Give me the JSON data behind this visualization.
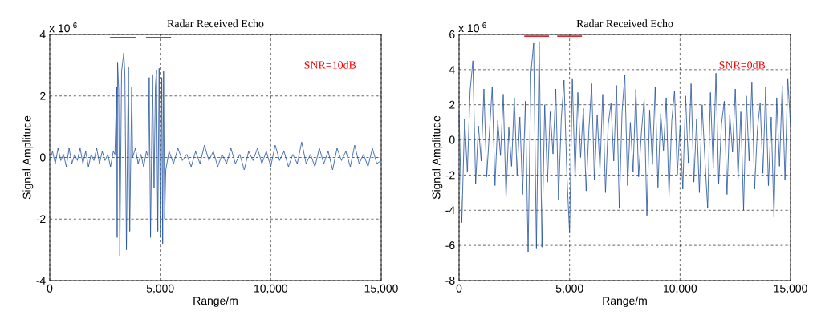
{
  "chart_data": [
    {
      "type": "line",
      "title": "Radar Received Echo",
      "xlabel": "Range/m",
      "ylabel": "Signal Amplitude",
      "xlim": [
        0,
        15000
      ],
      "ylim": [
        -4,
        4
      ],
      "xticks": [
        0,
        {
          "value": 5000,
          "label": "5,000"
        },
        {
          "value": 10000,
          "label": "10,000"
        },
        {
          "value": 15000,
          "label": "15,000"
        }
      ],
      "yticks": [
        -4,
        -2,
        0,
        2,
        4
      ],
      "grid": true,
      "annotations": [
        "x 10$^{-6}$",
        "SNR=10dB"
      ],
      "series": [
        {
          "color": "#2150a0",
          "x": [
            0,
            125,
            250,
            375,
            500,
            625,
            750,
            875,
            1000,
            1125,
            1250,
            1375,
            1500,
            1625,
            1750,
            1875,
            2000,
            2125,
            2250,
            2375,
            2500,
            2625,
            2750,
            2875,
            2950,
            3030,
            3050,
            3070,
            3120,
            3170,
            3250,
            3350,
            3400,
            3470,
            3520,
            3560,
            3620,
            3710,
            3750,
            3875,
            4000,
            4125,
            4250,
            4375,
            4460,
            4500,
            4560,
            4650,
            4720,
            4780,
            4830,
            4890,
            4950,
            5010,
            5070,
            5110,
            5150,
            5200,
            5250,
            5400,
            5600,
            5800,
            6000,
            6200,
            6400,
            6600,
            6800,
            7000,
            7200,
            7400,
            7600,
            7800,
            8000,
            8200,
            8400,
            8600,
            8800,
            9000,
            9200,
            9400,
            9600,
            9800,
            10000,
            10200,
            10400,
            10600,
            10800,
            11000,
            11200,
            11400,
            11600,
            11800,
            12000,
            12200,
            12400,
            12600,
            12800,
            13000,
            13200,
            13400,
            13600,
            13800,
            14000,
            14200,
            14400,
            14600,
            14800,
            15000
          ],
          "values": [
            -0.1,
            0.2,
            -0.2,
            0.3,
            -0.1,
            0.1,
            -0.3,
            0.3,
            -0.2,
            0.1,
            -0.1,
            0.3,
            -0.2,
            0.2,
            -0.3,
            0.1,
            -0.1,
            0.3,
            -0.2,
            0.2,
            -0.1,
            0.1,
            -0.3,
            0.2,
            0.1,
            2.3,
            -2.6,
            3.1,
            2.2,
            -3.2,
            2.8,
            3.4,
            2.7,
            -3.0,
            0.5,
            2.95,
            -2.4,
            2.3,
            0.0,
            0.3,
            -0.2,
            0.1,
            -0.3,
            0.2,
            0.0,
            2.6,
            -2.6,
            2.7,
            -1.0,
            2.3,
            2.85,
            -2.4,
            2.9,
            -2.6,
            2.6,
            -2.8,
            2.8,
            -2.0,
            -0.4,
            0.2,
            -0.2,
            0.3,
            -0.1,
            0.1,
            -0.3,
            0.2,
            -0.2,
            0.4,
            -0.1,
            0.2,
            -0.3,
            0.1,
            -0.2,
            0.3,
            -0.2,
            0.1,
            -0.4,
            0.2,
            -0.1,
            0.3,
            -0.2,
            0.2,
            -0.3,
            0.4,
            -0.1,
            0.2,
            -0.3,
            0.1,
            -0.2,
            0.5,
            -0.2,
            0.1,
            -0.3,
            0.3,
            -0.2,
            0.2,
            -0.4,
            0.3,
            -0.1,
            0.2,
            -0.3,
            0.4,
            -0.2,
            0.1,
            -0.3,
            0.3,
            -0.2,
            -0.1
          ]
        },
        {
          "color": "#e8232a",
          "x": [
            2730,
            3890,
            4100,
            4360,
            5490
          ],
          "values": [
            3.9,
            3.9,
            null,
            3.9,
            3.9
          ]
        }
      ]
    },
    {
      "type": "line",
      "title": "Radar Received Echo",
      "xlabel": "Range/m",
      "ylabel": "Signal Amplitude",
      "xlim": [
        0,
        15000
      ],
      "ylim": [
        -8,
        6
      ],
      "xticks": [
        0,
        {
          "value": 5000,
          "label": "5,000"
        },
        {
          "value": 10000,
          "label": "10,000"
        },
        {
          "value": 15000,
          "label": "15,000"
        }
      ],
      "yticks": [
        -8,
        -6,
        -4,
        -2,
        0,
        2,
        4,
        6
      ],
      "grid": true,
      "annotations": [
        "x 10$^{-6}$",
        "SNR=0dB"
      ],
      "series": [
        {
          "color": "#2150a0",
          "x": [
            0,
            125,
            250,
            375,
            500,
            625,
            750,
            875,
            1000,
            1125,
            1250,
            1375,
            1500,
            1625,
            1750,
            1875,
            2000,
            2125,
            2250,
            2375,
            2500,
            2625,
            2750,
            2875,
            3000,
            3125,
            3250,
            3375,
            3500,
            3625,
            3750,
            3875,
            4000,
            4125,
            4250,
            4375,
            4500,
            4625,
            4750,
            4875,
            5000,
            5125,
            5250,
            5375,
            5500,
            5625,
            5750,
            5875,
            6000,
            6125,
            6250,
            6375,
            6500,
            6625,
            6750,
            6875,
            7000,
            7125,
            7250,
            7375,
            7500,
            7625,
            7750,
            7875,
            8000,
            8125,
            8250,
            8375,
            8500,
            8625,
            8750,
            8875,
            9000,
            9125,
            9250,
            9375,
            9500,
            9625,
            9750,
            9875,
            10000,
            10125,
            10250,
            10375,
            10500,
            10625,
            10750,
            10875,
            11000,
            11125,
            11250,
            11375,
            11500,
            11625,
            11750,
            11875,
            12000,
            12125,
            12250,
            12375,
            12500,
            12625,
            12750,
            12875,
            13000,
            13125,
            13250,
            13375,
            13500,
            13625,
            13750,
            13875,
            14000,
            14125,
            14250,
            14375,
            14500,
            14625,
            14750,
            14875,
            15000
          ],
          "values": [
            1.5,
            -4.7,
            1.2,
            -1.8,
            2.8,
            4.5,
            -2.5,
            0.8,
            -1.2,
            2.9,
            -2.1,
            0.5,
            3.0,
            -2.6,
            1.1,
            -0.9,
            2.6,
            -3.3,
            0.7,
            -1.5,
            2.4,
            -2.0,
            1.3,
            -3.1,
            2.2,
            -6.4,
            3.8,
            5.5,
            -6.2,
            5.6,
            -6.1,
            2.0,
            -2.4,
            1.6,
            -0.8,
            2.9,
            -3.4,
            1.2,
            3.4,
            -1.9,
            -5.3,
            3.5,
            -2.2,
            2.7,
            -1.0,
            1.8,
            -2.9,
            0.6,
            3.2,
            -2.3,
            1.4,
            -1.7,
            2.6,
            -3.0,
            0.9,
            2.1,
            -1.2,
            3.1,
            -3.9,
            1.6,
            3.7,
            -2.6,
            1.0,
            -1.8,
            2.9,
            -2.1,
            0.4,
            2.3,
            -4.3,
            1.7,
            -1.4,
            3.0,
            -2.7,
            1.5,
            -0.6,
            2.4,
            -3.2,
            1.1,
            2.8,
            -2.0,
            0.8,
            -2.8,
            2.5,
            -1.3,
            3.2,
            -2.4,
            1.2,
            -3.0,
            2.0,
            -1.1,
            -3.9,
            2.7,
            -1.6,
            3.8,
            -2.5,
            0.9,
            2.2,
            -3.1,
            1.4,
            -0.7,
            2.9,
            -2.2,
            1.6,
            -4.0,
            2.5,
            -1.2,
            3.3,
            -2.8,
            0.6,
            2.1,
            -1.9,
            3.0,
            -2.6,
            1.3,
            -4.4,
            2.4,
            -1.5,
            3.1,
            -2.3,
            3.5,
            0.8
          ]
        },
        {
          "color": "#e8232a",
          "x": [
            2950,
            4070,
            4250,
            4440,
            5560
          ],
          "values": [
            5.9,
            5.9,
            null,
            5.9,
            5.9
          ]
        }
      ]
    }
  ]
}
